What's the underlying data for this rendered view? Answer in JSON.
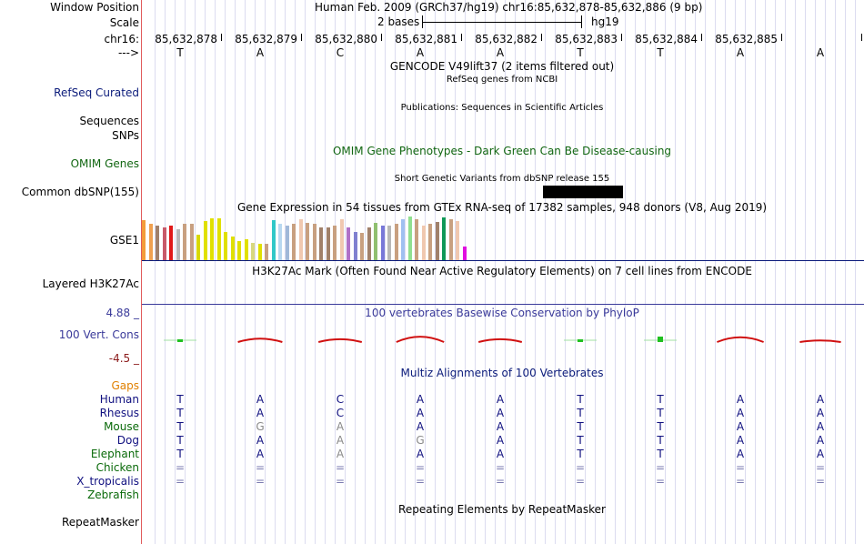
{
  "header": {
    "window_position_label": "Window Position",
    "window_position_value": "Human Feb. 2009 (GRCh37/hg19)   chr16:85,632,878-85,632,886 (9 bp)",
    "scale_label": "Scale",
    "scale_bases": "2 bases",
    "scale_assembly": "hg19",
    "chrom_label": "chr16:",
    "strand_label": "--->"
  },
  "coordinates": [
    "85,632,878",
    "85,632,879",
    "85,632,880",
    "85,632,881",
    "85,632,882",
    "85,632,883",
    "85,632,884",
    "85,632,885"
  ],
  "bases": [
    "T",
    "A",
    "C",
    "A",
    "A",
    "T",
    "T",
    "A",
    "A"
  ],
  "tracks": {
    "gencode_title": "GENCODE V49lift37 (2 items filtered out)",
    "refseq_label": "RefSeq Curated",
    "refseq_title": "RefSeq genes from NCBI",
    "pubs_title": "Publications: Sequences in Scientific Articles",
    "sequences_label": "Sequences",
    "snps_label": "SNPs",
    "omim_title": "OMIM Gene Phenotypes - Dark Green Can Be Disease-causing",
    "omim_label": "OMIM Genes",
    "dbsnp_title": "Short Genetic Variants from dbSNP release 155",
    "dbsnp_label": "Common dbSNP(155)",
    "gtex_title": "Gene Expression in 54 tissues from GTEx RNA-seq of 17382 samples, 948 donors (V8, Aug 2019)",
    "gtex_label": "GSE1",
    "h3k27_title": "H3K27Ac Mark (Often Found Near Active Regulatory Elements) on 7 cell lines from ENCODE",
    "h3k27_label": "Layered H3K27Ac",
    "phylop_title": "100 vertebrates Basewise Conservation by PhyloP",
    "phylop_label": "100 Vert. Cons",
    "phylop_max": "4.88 _",
    "phylop_min": "-4.5 _",
    "multiz_title": "Multiz Alignments of 100 Vertebrates",
    "gaps_label": "Gaps",
    "repeat_title": "Repeating Elements by RepeatMasker",
    "repeat_label": "RepeatMasker"
  },
  "alignments": [
    {
      "species": "Human",
      "seq": [
        "T",
        "A",
        "C",
        "A",
        "A",
        "T",
        "T",
        "A",
        "A"
      ]
    },
    {
      "species": "Rhesus",
      "seq": [
        "T",
        "A",
        "C",
        "A",
        "A",
        "T",
        "T",
        "A",
        "A"
      ]
    },
    {
      "species": "Mouse",
      "seq": [
        "T",
        "G",
        "A",
        "A",
        "A",
        "T",
        "T",
        "A",
        "A"
      ]
    },
    {
      "species": "Dog",
      "seq": [
        "T",
        "A",
        "A",
        "G",
        "A",
        "T",
        "T",
        "A",
        "A"
      ]
    },
    {
      "species": "Elephant",
      "seq": [
        "T",
        "A",
        "A",
        "A",
        "A",
        "T",
        "T",
        "A",
        "A"
      ]
    },
    {
      "species": "Chicken",
      "seq": [
        "=",
        "=",
        "=",
        "=",
        "=",
        "=",
        "=",
        "=",
        "="
      ]
    },
    {
      "species": "X_tropicalis",
      "seq": [
        "=",
        "=",
        "=",
        "=",
        "=",
        "=",
        "=",
        "=",
        "="
      ]
    },
    {
      "species": "Zebrafish",
      "seq": [
        "",
        "",
        "",
        "",
        "",
        "",
        "",
        "",
        ""
      ]
    }
  ],
  "gtex_bars": [
    {
      "color": "#f39c3a",
      "value": 0.88
    },
    {
      "color": "#f0a050",
      "value": 0.8
    },
    {
      "color": "#a0806a",
      "value": 0.76
    },
    {
      "color": "#c85a6a",
      "value": 0.72
    },
    {
      "color": "#e01818",
      "value": 0.76
    },
    {
      "color": "#b8b8b8",
      "value": 0.68
    },
    {
      "color": "#c8a080",
      "value": 0.8
    },
    {
      "color": "#c8a080",
      "value": 0.8
    },
    {
      "color": "#d8d800",
      "value": 0.56
    },
    {
      "color": "#e0e000",
      "value": 0.86
    },
    {
      "color": "#e0e000",
      "value": 0.92
    },
    {
      "color": "#e0e000",
      "value": 0.92
    },
    {
      "color": "#e0e000",
      "value": 0.62
    },
    {
      "color": "#e0e000",
      "value": 0.52
    },
    {
      "color": "#e0e000",
      "value": 0.42
    },
    {
      "color": "#e0e000",
      "value": 0.46
    },
    {
      "color": "#d8d880",
      "value": 0.38
    },
    {
      "color": "#e0e000",
      "value": 0.36
    },
    {
      "color": "#c8a080",
      "value": 0.36
    },
    {
      "color": "#30c8c8",
      "value": 0.88
    },
    {
      "color": "#b8d8f0",
      "value": 0.8
    },
    {
      "color": "#a0b8d8",
      "value": 0.76
    },
    {
      "color": "#c8a080",
      "value": 0.8
    },
    {
      "color": "#f0c8b0",
      "value": 0.9
    },
    {
      "color": "#c8a080",
      "value": 0.82
    },
    {
      "color": "#c8a080",
      "value": 0.8
    },
    {
      "color": "#a0806a",
      "value": 0.72
    },
    {
      "color": "#a0806a",
      "value": 0.72
    },
    {
      "color": "#c8a080",
      "value": 0.76
    },
    {
      "color": "#f0c8b0",
      "value": 0.9
    },
    {
      "color": "#b070c8",
      "value": 0.72
    },
    {
      "color": "#8080d0",
      "value": 0.62
    },
    {
      "color": "#c8a080",
      "value": 0.6
    },
    {
      "color": "#a0806a",
      "value": 0.72
    },
    {
      "color": "#90c070",
      "value": 0.82
    },
    {
      "color": "#7878d8",
      "value": 0.76
    },
    {
      "color": "#b8b8b8",
      "value": 0.76
    },
    {
      "color": "#c8a080",
      "value": 0.8
    },
    {
      "color": "#a0c0f0",
      "value": 0.9
    },
    {
      "color": "#90e090",
      "value": 0.96
    },
    {
      "color": "#c8a080",
      "value": 0.9
    },
    {
      "color": "#f0c8b0",
      "value": 0.76
    },
    {
      "color": "#c8a080",
      "value": 0.8
    },
    {
      "color": "#a0806a",
      "value": 0.84
    },
    {
      "color": "#109858",
      "value": 0.94
    },
    {
      "color": "#c8a080",
      "value": 0.9
    },
    {
      "color": "#f0c8b0",
      "value": 0.86
    },
    {
      "color": "#e010e0",
      "value": 0.3
    }
  ],
  "phylop": [
    {
      "dir": "up",
      "value": 0.1,
      "color": "#20c020"
    },
    {
      "dir": "cap",
      "value": 0.4,
      "color": "#d01010"
    },
    {
      "dir": "cap",
      "value": 0.3,
      "color": "#d01010"
    },
    {
      "dir": "cap",
      "value": 0.7,
      "color": "#d01010"
    },
    {
      "dir": "cap",
      "value": 0.3,
      "color": "#d01010"
    },
    {
      "dir": "up",
      "value": 0.1,
      "color": "#20c020"
    },
    {
      "dir": "up",
      "value": 0.3,
      "color": "#20c020"
    },
    {
      "dir": "cap",
      "value": 0.6,
      "color": "#d01010"
    },
    {
      "dir": "cap",
      "value": 0.1,
      "color": "#d01010"
    }
  ],
  "colors": {
    "separator": "#e05a5a",
    "navy": "#0a1a7a",
    "omim_green": "#116611",
    "gaps_orange": "#e08000",
    "phylop_blue": "#3a3a9a",
    "phylop_min": "#8b1a1a",
    "species_navy": "#101080",
    "species_green": "#0a6a0a"
  }
}
